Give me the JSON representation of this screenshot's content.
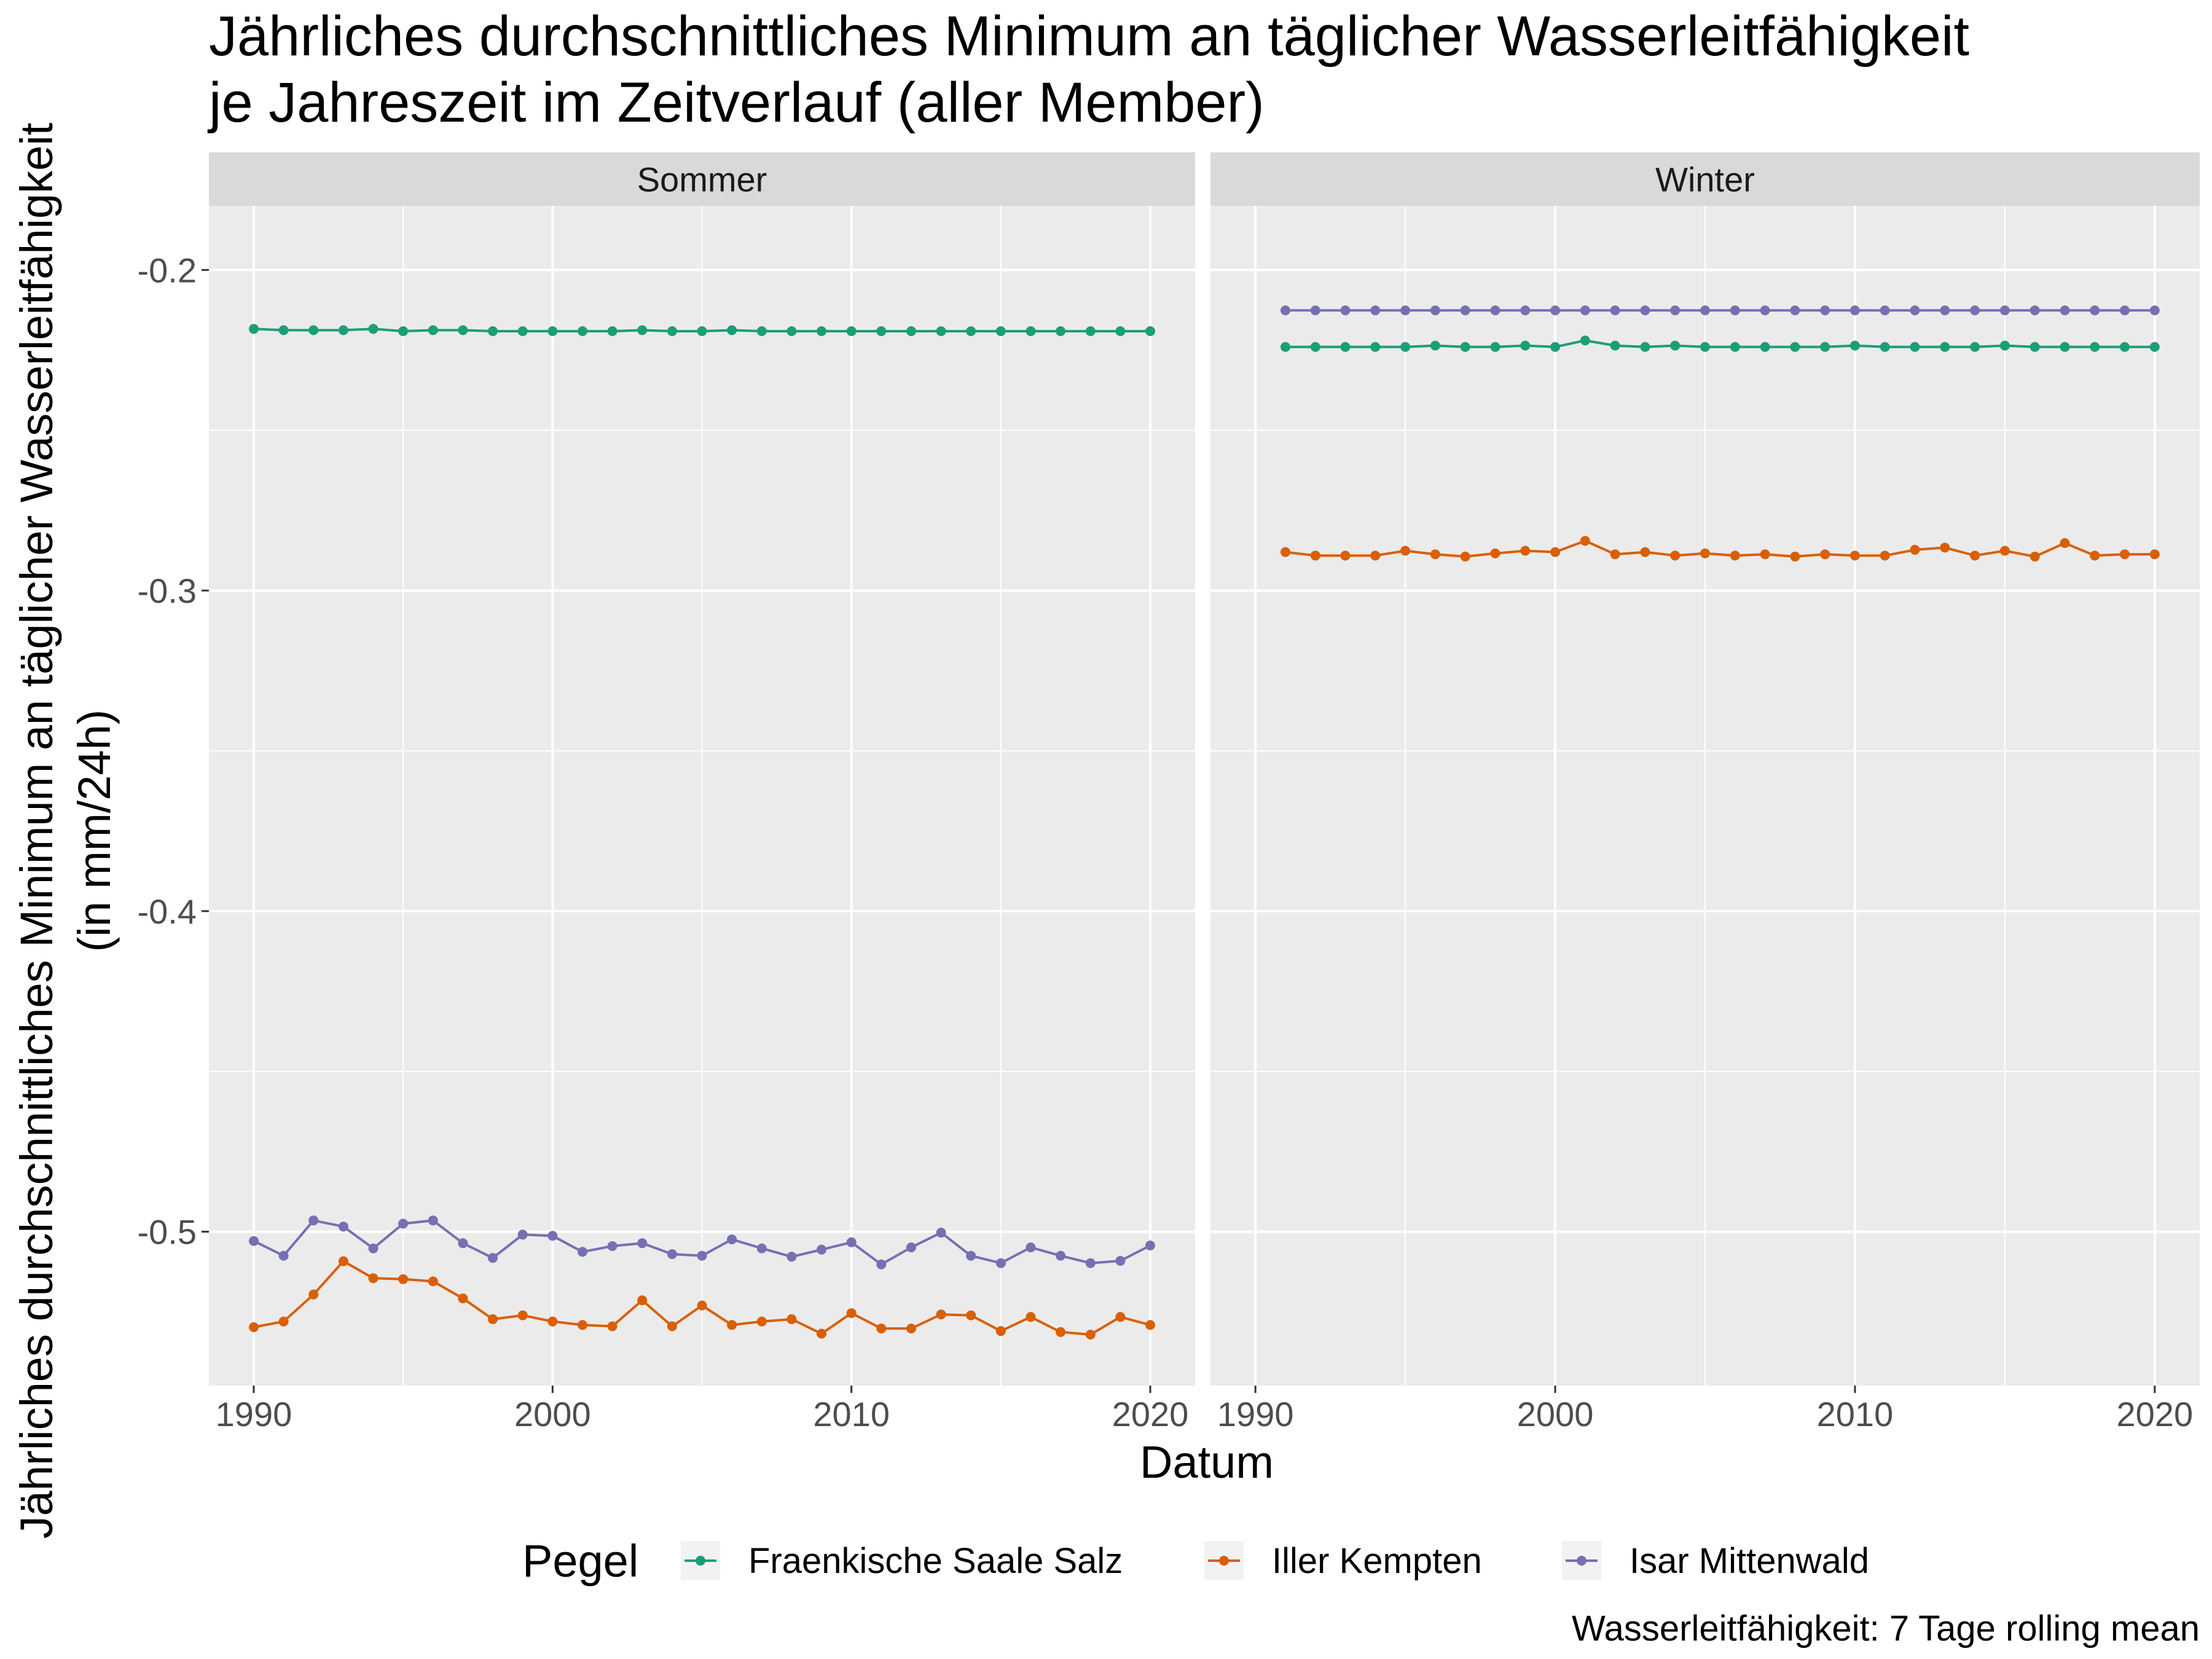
{
  "chart_data": {
    "type": "line",
    "title_lines": [
      "Jährliches durchschnittliches Minimum an täglicher Wasserleitfähigkeit",
      "je Jahreszeit im Zeitverlauf (aller Member)"
    ],
    "xlabel": "Datum",
    "ylabel_lines": [
      "Jährliches durchschnittliches Minimum an täglicher Wasserleitfähigkeit",
      "(in mm/24h)"
    ],
    "caption": "Wasserleitfähigkeit: 7 Tage rolling mean",
    "legend_title": "Pegel",
    "legend_position": "bottom",
    "grid": true,
    "xlim": [
      1988.5,
      2021.5
    ],
    "ylim": [
      -0.548,
      -0.18
    ],
    "x_ticks": [
      1990,
      2000,
      2010,
      2020
    ],
    "y_ticks": [
      -0.2,
      -0.3,
      -0.4,
      -0.5
    ],
    "y_tick_labels": [
      "-0.2",
      "-0.3",
      "-0.4",
      "-0.5"
    ],
    "series_styles": [
      {
        "name": "Fraenkische Saale Salz",
        "color": "#1b9e77"
      },
      {
        "name": "Iller Kempten",
        "color": "#d95f02"
      },
      {
        "name": "Isar Mittenwald",
        "color": "#7570b3"
      }
    ],
    "panels": [
      {
        "label": "Sommer",
        "x_start": 1990,
        "series": [
          {
            "name": "Fraenkische Saale Salz",
            "values": [
              -0.2184,
              -0.2188,
              -0.2188,
              -0.2188,
              -0.2184,
              -0.2191,
              -0.2188,
              -0.2188,
              -0.2191,
              -0.2191,
              -0.2191,
              -0.2191,
              -0.2191,
              -0.2188,
              -0.2191,
              -0.2191,
              -0.2188,
              -0.2191,
              -0.2191,
              -0.2191,
              -0.2191,
              -0.2191,
              -0.2191,
              -0.2191,
              -0.2191,
              -0.2191,
              -0.2191,
              -0.2191,
              -0.2191,
              -0.2191,
              -0.2191
            ]
          },
          {
            "name": "Iller Kempten",
            "values": [
              -0.5298,
              -0.528,
              -0.5196,
              -0.5092,
              -0.5145,
              -0.5148,
              -0.5155,
              -0.5208,
              -0.5273,
              -0.5261,
              -0.528,
              -0.5291,
              -0.5295,
              -0.5214,
              -0.5295,
              -0.523,
              -0.5291,
              -0.528,
              -0.5273,
              -0.5318,
              -0.5254,
              -0.5302,
              -0.5302,
              -0.5258,
              -0.5261,
              -0.531,
              -0.5266,
              -0.5313,
              -0.5321,
              -0.5266,
              -0.5291
            ]
          },
          {
            "name": "Isar Mittenwald",
            "values": [
              -0.5029,
              -0.5075,
              -0.4965,
              -0.4984,
              -0.5052,
              -0.4975,
              -0.4965,
              -0.5036,
              -0.5082,
              -0.5009,
              -0.5013,
              -0.5063,
              -0.5045,
              -0.5036,
              -0.507,
              -0.5075,
              -0.5024,
              -0.5052,
              -0.5078,
              -0.5056,
              -0.5033,
              -0.5102,
              -0.5049,
              -0.5003,
              -0.5075,
              -0.5098,
              -0.5049,
              -0.5075,
              -0.5098,
              -0.5091,
              -0.5043
            ]
          }
        ]
      },
      {
        "label": "Winter",
        "x_start": 1991,
        "series": [
          {
            "name": "Fraenkische Saale Salz",
            "values": [
              -0.224,
              -0.224,
              -0.224,
              -0.224,
              -0.224,
              -0.2236,
              -0.224,
              -0.224,
              -0.2236,
              -0.224,
              -0.222,
              -0.2236,
              -0.224,
              -0.2236,
              -0.224,
              -0.224,
              -0.224,
              -0.224,
              -0.224,
              -0.2236,
              -0.224,
              -0.224,
              -0.224,
              -0.224,
              -0.2236,
              -0.224,
              -0.224,
              -0.224,
              -0.224,
              -0.224
            ]
          },
          {
            "name": "Iller Kempten",
            "values": [
              -0.288,
              -0.2891,
              -0.2891,
              -0.2891,
              -0.2876,
              -0.2887,
              -0.2894,
              -0.2884,
              -0.2876,
              -0.288,
              -0.2845,
              -0.2887,
              -0.288,
              -0.2891,
              -0.2884,
              -0.2891,
              -0.2887,
              -0.2894,
              -0.2887,
              -0.2891,
              -0.2891,
              -0.2873,
              -0.2866,
              -0.2891,
              -0.2876,
              -0.2894,
              -0.2852,
              -0.2891,
              -0.2887,
              -0.2887
            ]
          },
          {
            "name": "Isar Mittenwald",
            "values": [
              -0.2126,
              -0.2126,
              -0.2126,
              -0.2126,
              -0.2126,
              -0.2126,
              -0.2126,
              -0.2126,
              -0.2126,
              -0.2126,
              -0.2126,
              -0.2126,
              -0.2126,
              -0.2126,
              -0.2126,
              -0.2126,
              -0.2126,
              -0.2126,
              -0.2126,
              -0.2126,
              -0.2126,
              -0.2126,
              -0.2126,
              -0.2126,
              -0.2126,
              -0.2126,
              -0.2126,
              -0.2126,
              -0.2126,
              -0.2126
            ]
          }
        ]
      }
    ]
  }
}
